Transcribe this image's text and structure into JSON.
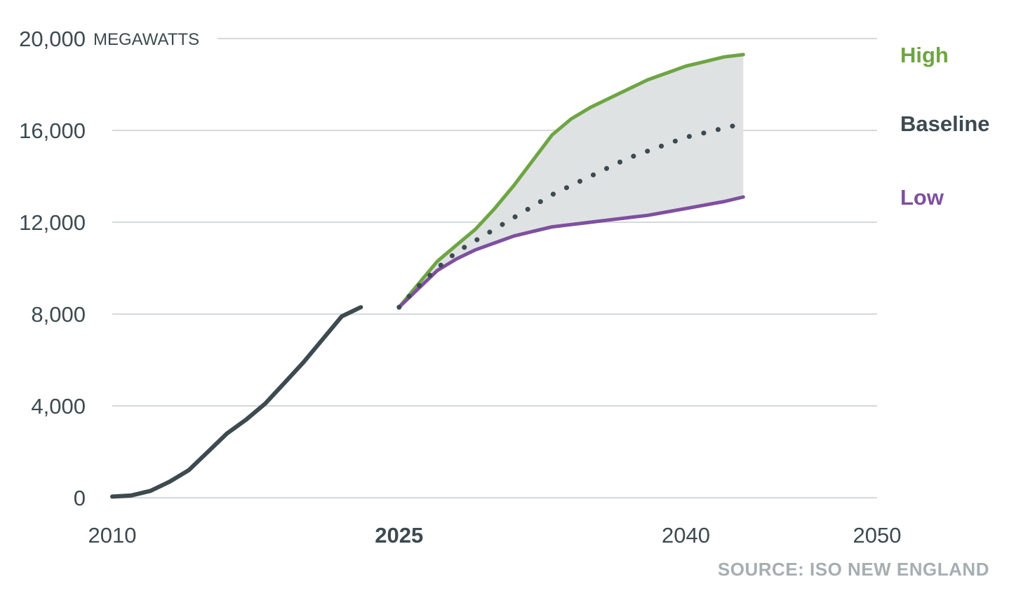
{
  "chart_data": {
    "type": "line",
    "y_unit_label": "MEGAWATTS",
    "ylim": [
      0,
      20000
    ],
    "y_ticks": [
      {
        "value": 0,
        "label": "0"
      },
      {
        "value": 4000,
        "label": "4,000"
      },
      {
        "value": 8000,
        "label": "8,000"
      },
      {
        "value": 12000,
        "label": "12,000"
      },
      {
        "value": 16000,
        "label": "16,000"
      },
      {
        "value": 20000,
        "label": "20,000"
      }
    ],
    "xlim": [
      2010,
      2050
    ],
    "x_ticks": [
      {
        "value": 2010,
        "label": "2010",
        "bold": false
      },
      {
        "value": 2025,
        "label": "2025",
        "bold": true
      },
      {
        "value": 2040,
        "label": "2040",
        "bold": false
      },
      {
        "value": 2050,
        "label": "2050",
        "bold": false
      }
    ],
    "grid": true,
    "shaded_band_between": [
      "Low",
      "High"
    ],
    "historical": {
      "color": "#3d4a50",
      "points": [
        [
          2010,
          50
        ],
        [
          2011,
          100
        ],
        [
          2012,
          300
        ],
        [
          2013,
          700
        ],
        [
          2014,
          1200
        ],
        [
          2015,
          2000
        ],
        [
          2016,
          2800
        ],
        [
          2017,
          3400
        ],
        [
          2018,
          4100
        ],
        [
          2019,
          5000
        ],
        [
          2020,
          5900
        ],
        [
          2021,
          6900
        ],
        [
          2022,
          7900
        ],
        [
          2023,
          8300
        ]
      ]
    },
    "series": [
      {
        "name": "High",
        "color": "#6ea544",
        "style": "solid",
        "points": [
          [
            2025,
            8300
          ],
          [
            2026,
            9300
          ],
          [
            2027,
            10300
          ],
          [
            2028,
            11000
          ],
          [
            2029,
            11700
          ],
          [
            2030,
            12600
          ],
          [
            2031,
            13600
          ],
          [
            2032,
            14700
          ],
          [
            2033,
            15800
          ],
          [
            2034,
            16500
          ],
          [
            2035,
            17000
          ],
          [
            2036,
            17400
          ],
          [
            2037,
            17800
          ],
          [
            2038,
            18200
          ],
          [
            2039,
            18500
          ],
          [
            2040,
            18800
          ],
          [
            2041,
            19000
          ],
          [
            2042,
            19200
          ],
          [
            2043,
            19300
          ]
        ]
      },
      {
        "name": "Baseline",
        "color": "#3d4a50",
        "style": "dotted",
        "points": [
          [
            2025,
            8300
          ],
          [
            2026,
            9200
          ],
          [
            2027,
            10000
          ],
          [
            2028,
            10700
          ],
          [
            2029,
            11200
          ],
          [
            2030,
            11700
          ],
          [
            2031,
            12200
          ],
          [
            2032,
            12700
          ],
          [
            2033,
            13200
          ],
          [
            2034,
            13600
          ],
          [
            2035,
            14000
          ],
          [
            2036,
            14400
          ],
          [
            2037,
            14800
          ],
          [
            2038,
            15100
          ],
          [
            2039,
            15400
          ],
          [
            2040,
            15700
          ],
          [
            2041,
            15900
          ],
          [
            2042,
            16100
          ],
          [
            2043,
            16300
          ]
        ]
      },
      {
        "name": "Low",
        "color": "#7f4fa0",
        "style": "solid",
        "points": [
          [
            2025,
            8300
          ],
          [
            2026,
            9100
          ],
          [
            2027,
            9900
          ],
          [
            2028,
            10400
          ],
          [
            2029,
            10800
          ],
          [
            2030,
            11100
          ],
          [
            2031,
            11400
          ],
          [
            2032,
            11600
          ],
          [
            2033,
            11800
          ],
          [
            2034,
            11900
          ],
          [
            2035,
            12000
          ],
          [
            2036,
            12100
          ],
          [
            2037,
            12200
          ],
          [
            2038,
            12300
          ],
          [
            2039,
            12450
          ],
          [
            2040,
            12600
          ],
          [
            2041,
            12750
          ],
          [
            2042,
            12900
          ],
          [
            2043,
            13100
          ]
        ]
      }
    ],
    "band_color": "#dfe2e3"
  },
  "source_note": "SOURCE: ISO NEW ENGLAND"
}
